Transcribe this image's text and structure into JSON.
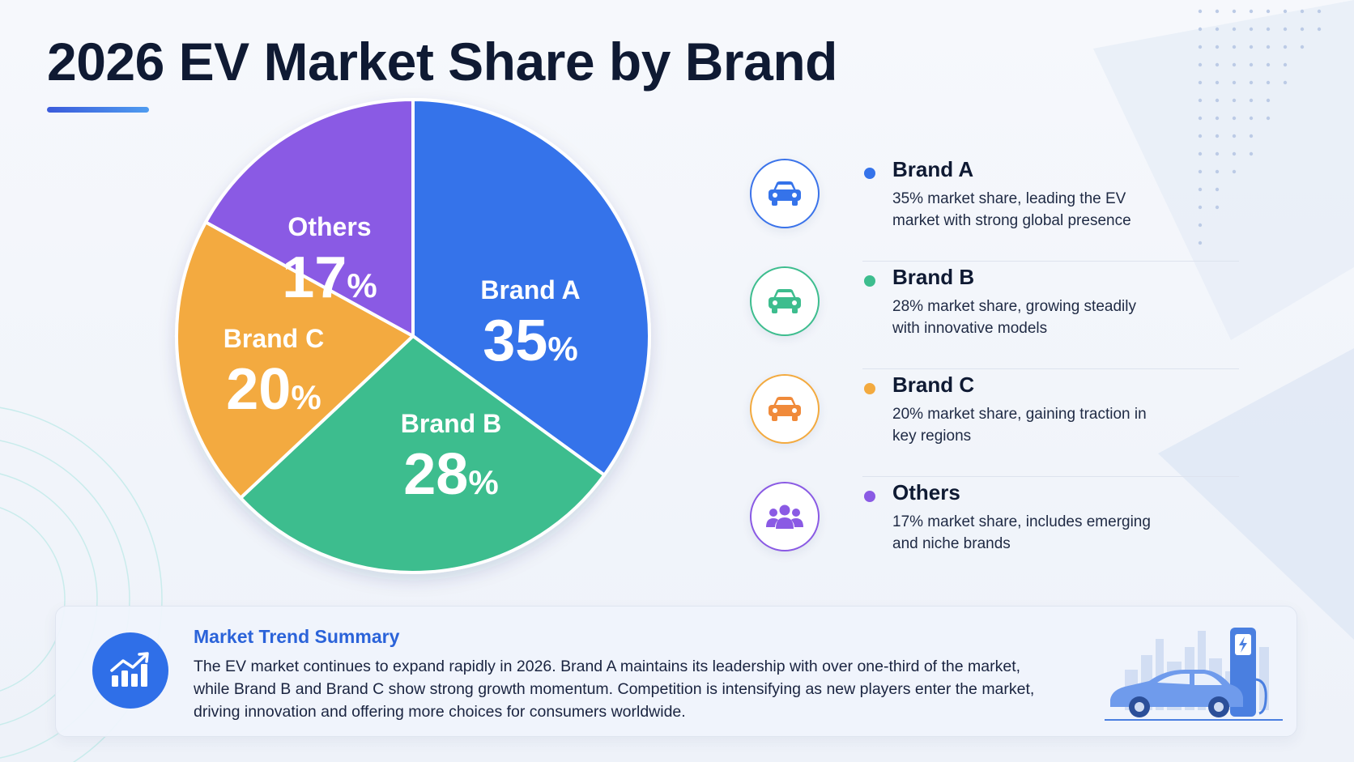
{
  "title": "2026 EV Market Share by Brand",
  "colors": {
    "brand_a": "#3573ea",
    "brand_b": "#3dbd8e",
    "brand_c": "#f3aa3f",
    "others": "#8a5ae4",
    "accent": "#2f6fe8",
    "title": "#0f1a33"
  },
  "chart_data": {
    "type": "pie",
    "title": "2026 EV Market Share by Brand",
    "unit": "%",
    "slices": [
      {
        "label": "Brand A",
        "value": 35,
        "pct_sign": "%",
        "color": "#3573ea"
      },
      {
        "label": "Brand B",
        "value": 28,
        "pct_sign": "%",
        "color": "#3dbd8e"
      },
      {
        "label": "Brand C",
        "value": 20,
        "pct_sign": "%",
        "color": "#f3aa3f"
      },
      {
        "label": "Others",
        "value": 17,
        "pct_sign": "%",
        "color": "#8a5ae4"
      }
    ]
  },
  "legend": {
    "items": [
      {
        "name": "Brand A",
        "description": "35% market share, leading the EV market with strong global presence",
        "icon": "car-icon",
        "color": "#3573ea"
      },
      {
        "name": "Brand B",
        "description": "28% market share, growing steadily with innovative models",
        "icon": "car-icon",
        "color": "#3dbd8e"
      },
      {
        "name": "Brand C",
        "description": "20% market share, gaining traction in key regions",
        "icon": "car-icon",
        "color": "#f3aa3f"
      },
      {
        "name": "Others",
        "description": "17% market share, includes emerging and niche brands",
        "icon": "people-group-icon",
        "color": "#8a5ae4"
      }
    ]
  },
  "summary": {
    "title": "Market Trend Summary",
    "text": "The EV market continues to expand rapidly in 2026. Brand A maintains its leadership with over one-third of the market, while Brand B and Brand C show strong growth momentum. Competition is intensifying as new players enter the market, driving innovation and offering more choices for consumers worldwide.",
    "icon": "growth-chart-icon",
    "illustration": "ev-charging-car-illustration"
  }
}
